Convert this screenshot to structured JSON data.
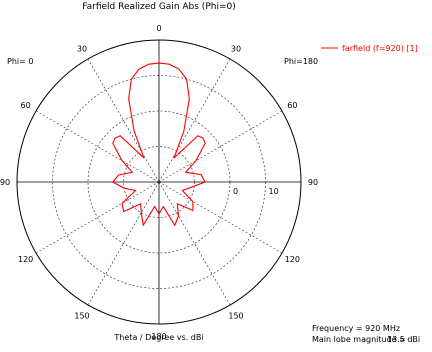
{
  "chart_data": {
    "type": "polar",
    "title": "Farfield Realized Gain Abs (Phi=0)",
    "xlabel": "Theta / Degree vs. dBi",
    "phi_left_label": "Phi=  0",
    "phi_right_label": "Phi=180",
    "angle_ticks": [
      {
        "deg": 0,
        "label": "0"
      },
      {
        "deg": 30,
        "label": "30"
      },
      {
        "deg": 60,
        "label": "60"
      },
      {
        "deg": 90,
        "label": "90"
      },
      {
        "deg": 120,
        "label": "120"
      },
      {
        "deg": 150,
        "label": "150"
      },
      {
        "deg": 180,
        "label": "180"
      },
      {
        "deg": -150,
        "label": "150"
      },
      {
        "deg": -120,
        "label": "120"
      },
      {
        "deg": -90,
        "label": "90"
      },
      {
        "deg": -60,
        "label": "60"
      },
      {
        "deg": -30,
        "label": "30"
      }
    ],
    "radial_range_dbi": [
      -20,
      20
    ],
    "radial_rings_dbi": [
      -10,
      0,
      10
    ],
    "radial_ring_labels": [
      "0",
      "10"
    ],
    "series": [
      {
        "name": "farfield (f=920) [1]",
        "color": "#ff0000",
        "points": [
          {
            "theta": -180,
            "gain": -11
          },
          {
            "theta": -170,
            "gain": -13
          },
          {
            "theta": -160,
            "gain": -7
          },
          {
            "theta": -150,
            "gain": -10
          },
          {
            "theta": -140,
            "gain": -12
          },
          {
            "theta": -130,
            "gain": -7
          },
          {
            "theta": -120,
            "gain": -8
          },
          {
            "theta": -110,
            "gain": -13
          },
          {
            "theta": -100,
            "gain": -10
          },
          {
            "theta": -90,
            "gain": -7
          },
          {
            "theta": -80,
            "gain": -8.5
          },
          {
            "theta": -70,
            "gain": -12
          },
          {
            "theta": -60,
            "gain": -8
          },
          {
            "theta": -50,
            "gain": -3
          },
          {
            "theta": -45,
            "gain": -2.5
          },
          {
            "theta": -40,
            "gain": -3
          },
          {
            "theta": -32,
            "gain": -12
          },
          {
            "theta": -26,
            "gain": -4
          },
          {
            "theta": -20,
            "gain": 5
          },
          {
            "theta": -15,
            "gain": 10
          },
          {
            "theta": -10,
            "gain": 12.3
          },
          {
            "theta": -5,
            "gain": 13.3
          },
          {
            "theta": 0,
            "gain": 13.5
          },
          {
            "theta": 5,
            "gain": 13.3
          },
          {
            "theta": 10,
            "gain": 12.3
          },
          {
            "theta": 15,
            "gain": 10
          },
          {
            "theta": 20,
            "gain": 5
          },
          {
            "theta": 26,
            "gain": -4
          },
          {
            "theta": 32,
            "gain": -12
          },
          {
            "theta": 40,
            "gain": -3
          },
          {
            "theta": 45,
            "gain": -2.5
          },
          {
            "theta": 50,
            "gain": -3
          },
          {
            "theta": 60,
            "gain": -8
          },
          {
            "theta": 70,
            "gain": -12
          },
          {
            "theta": 80,
            "gain": -8
          },
          {
            "theta": 90,
            "gain": -7
          },
          {
            "theta": 100,
            "gain": -11
          },
          {
            "theta": 110,
            "gain": -13
          },
          {
            "theta": 120,
            "gain": -9
          },
          {
            "theta": 130,
            "gain": -7.5
          },
          {
            "theta": 140,
            "gain": -12
          },
          {
            "theta": 150,
            "gain": -9
          },
          {
            "theta": 160,
            "gain": -7
          },
          {
            "theta": 170,
            "gain": -13
          },
          {
            "theta": 180,
            "gain": -11
          }
        ]
      }
    ]
  },
  "info": {
    "frequency_label": "Frequency = 920 MHz",
    "main_lobe_label": "Main lobe magnitude =",
    "main_lobe_value": "13.5 dBi"
  },
  "colors": {
    "curve": "#ff0000",
    "axis": "#000000",
    "grid": "#404040"
  }
}
